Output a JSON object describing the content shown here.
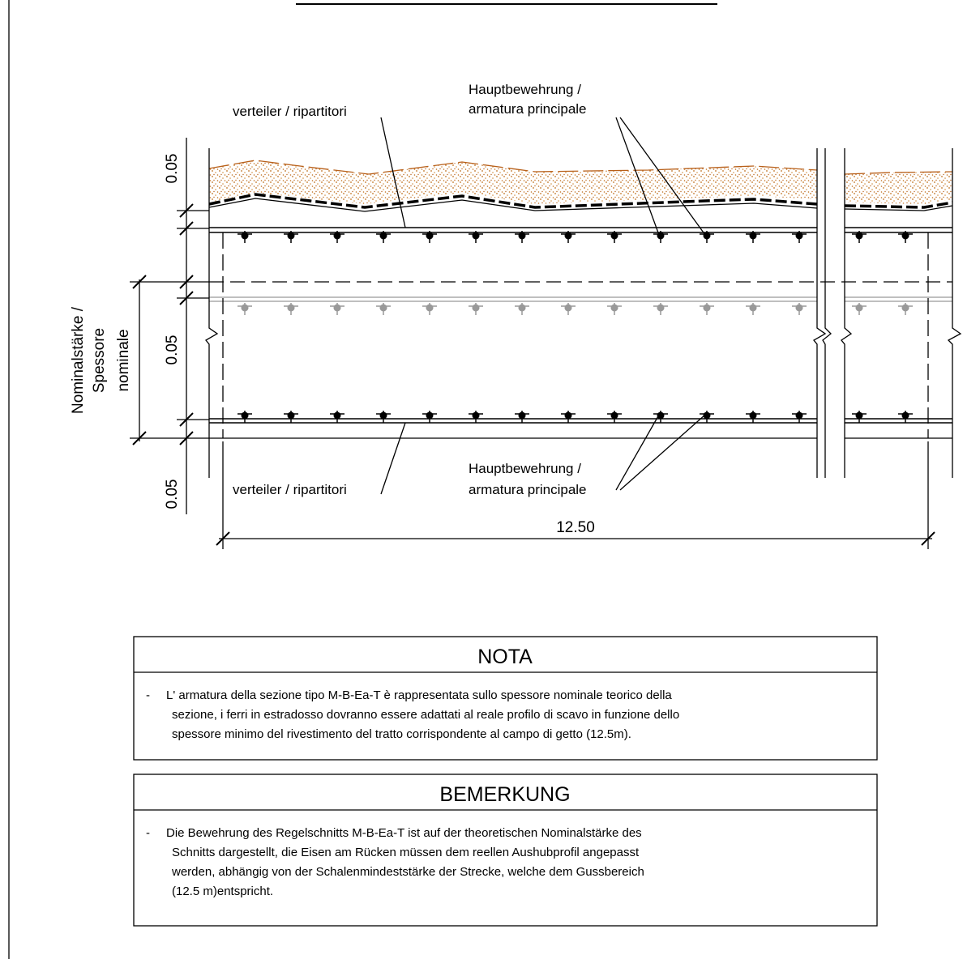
{
  "labels": {
    "main_top": [
      "Hauptbewehrung /",
      "armatura principale"
    ],
    "dist_top": "verteiler / ripartitori",
    "main_bottom": [
      "Hauptbewehrung /",
      "armatura principale"
    ],
    "dist_bottom": "verteiler / ripartitori"
  },
  "dimensions": {
    "top": "0.05",
    "middle": "0.05",
    "bottom": "0.05",
    "nominal": [
      "Nominalstärke /",
      "Spessore",
      "nominale"
    ],
    "length": "12.50"
  },
  "notes": [
    {
      "title": "NOTA",
      "dash": "-",
      "lines": [
        "L' armatura della sezione tipo M-B-Ea-T è rappresentata sullo spessore nominale teorico della",
        "sezione, i ferri in estradosso dovranno essere adattati al reale profilo di scavo in funzione dello",
        "spessore minimo del rivestimento del tratto corrispondente al campo di getto (12.5m)."
      ]
    },
    {
      "title": "BEMERKUNG",
      "dash": "-",
      "lines": [
        "Die Bewehrung des Regelschnitts M-B-Ea-T ist auf der theoretischen Nominalstärke des",
        "Schnitts dargestellt, die Eisen am Rücken müssen dem reellen Aushubprofil angepasst",
        "werden, abhängig von der Schalenmindeststärke der Strecke, welche dem Gussbereich",
        "(12.5 m)entspricht."
      ]
    }
  ]
}
